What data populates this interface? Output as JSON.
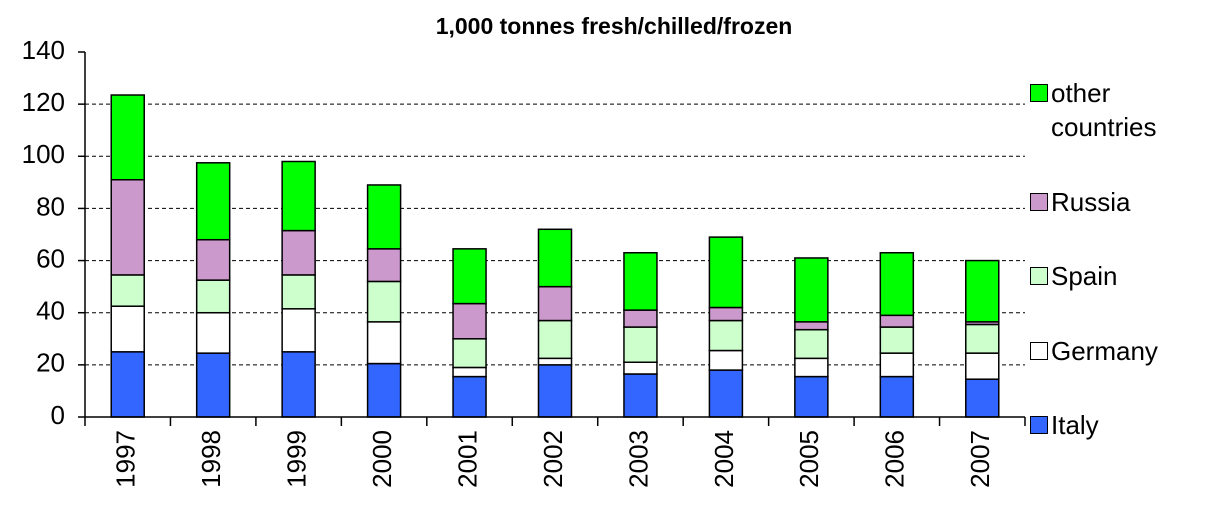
{
  "chart_data": {
    "type": "stacked_bar",
    "title": "1,000 tonnes fresh/chilled/frozen",
    "categories": [
      "1997",
      "1998",
      "1999",
      "2000",
      "2001",
      "2002",
      "2003",
      "2004",
      "2005",
      "2006",
      "2007"
    ],
    "series": [
      {
        "name": "Italy",
        "color": "#3366ff",
        "values": [
          25,
          24.5,
          25,
          20.5,
          15.5,
          20,
          16.5,
          18,
          15.5,
          15.5,
          14.5
        ]
      },
      {
        "name": "Germany",
        "color": "#ffffff",
        "values": [
          17.5,
          15.5,
          16.5,
          16,
          3.5,
          2.5,
          4.5,
          7.5,
          7,
          9,
          10
        ]
      },
      {
        "name": "Spain",
        "color": "#ccffcc",
        "values": [
          12,
          12.5,
          13,
          15.5,
          11,
          14.5,
          13.5,
          11.5,
          11,
          10,
          11
        ]
      },
      {
        "name": "Russia",
        "color": "#cc99cc",
        "values": [
          36.5,
          15.5,
          17,
          12.5,
          13.5,
          13,
          6.5,
          5,
          3,
          4.5,
          1
        ]
      },
      {
        "name": "other countries",
        "color": "#00ff00",
        "values": [
          32.5,
          29.5,
          26.5,
          24.5,
          21,
          22,
          22,
          27,
          24.5,
          24,
          23.5
        ]
      }
    ],
    "ylim": [
      0,
      140
    ],
    "yticks": [
      0,
      20,
      40,
      60,
      80,
      100,
      120,
      140
    ],
    "grid": true,
    "legend": "right"
  }
}
